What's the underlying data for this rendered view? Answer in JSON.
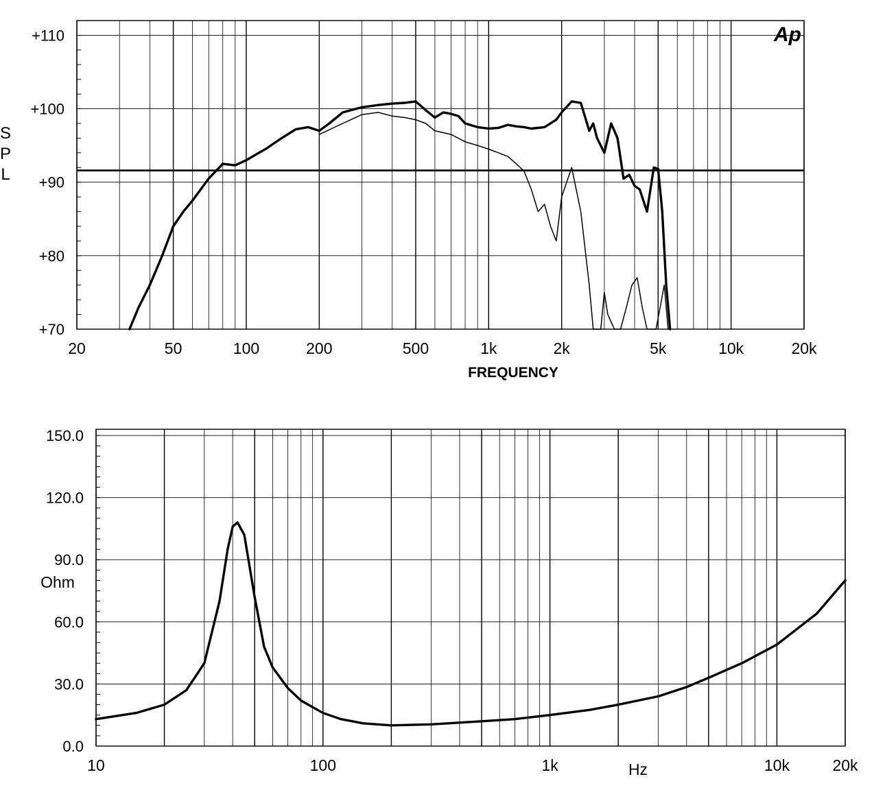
{
  "chart_data": [
    {
      "type": "line",
      "id": "spl",
      "title": "",
      "xlabel": "FREQUENCY",
      "ylabel": "SPL",
      "logo": "Ap",
      "x_scale": "log",
      "xlim": [
        20,
        20000
      ],
      "ylim": [
        70,
        112
      ],
      "grid": true,
      "x_ticks": [
        {
          "value": 20,
          "label": "20"
        },
        {
          "value": 50,
          "label": "50"
        },
        {
          "value": 100,
          "label": "100"
        },
        {
          "value": 200,
          "label": "200"
        },
        {
          "value": 500,
          "label": "500"
        },
        {
          "value": 1000,
          "label": "1k"
        },
        {
          "value": 2000,
          "label": "2k"
        },
        {
          "value": 5000,
          "label": "5k"
        },
        {
          "value": 10000,
          "label": "10k"
        },
        {
          "value": 20000,
          "label": "20k"
        }
      ],
      "y_ticks": [
        {
          "value": 70,
          "label": "+70"
        },
        {
          "value": 80,
          "label": "+80"
        },
        {
          "value": 90,
          "label": "+90"
        },
        {
          "value": 100,
          "label": "+100"
        },
        {
          "value": 110,
          "label": "+110"
        }
      ],
      "reference_line_y": 91.6,
      "series": [
        {
          "style": "thick",
          "x": [
            33,
            36,
            40,
            45,
            50,
            55,
            60,
            70,
            80,
            90,
            100,
            110,
            120,
            140,
            160,
            180,
            200,
            220,
            250,
            300,
            350,
            400,
            450,
            500,
            550,
            600,
            650,
            700,
            750,
            800,
            900,
            1000,
            1100,
            1200,
            1300,
            1400,
            1500,
            1700,
            1900,
            2000,
            2200,
            2400,
            2600,
            2700,
            2800,
            3000,
            3200,
            3400,
            3600,
            3800,
            4000,
            4200,
            4500,
            4800,
            5000,
            5200,
            5400,
            5600
          ],
          "y": [
            70,
            73,
            76,
            80,
            84,
            86,
            87.5,
            90.5,
            92.5,
            92.3,
            93,
            93.8,
            94.5,
            96,
            97.2,
            97.5,
            97,
            98,
            99.5,
            100.2,
            100.5,
            100.7,
            100.8,
            101,
            99.8,
            98.8,
            99.5,
            99.3,
            99,
            98,
            97.5,
            97.3,
            97.4,
            97.8,
            97.6,
            97.5,
            97.3,
            97.5,
            98.5,
            99.5,
            101,
            100.8,
            97,
            98,
            96,
            94,
            98,
            96,
            90.5,
            91,
            89.5,
            89,
            86,
            92,
            91.8,
            86,
            76,
            70
          ]
        },
        {
          "style": "thin",
          "x": [
            200,
            250,
            300,
            350,
            400,
            450,
            500,
            550,
            600,
            700,
            800,
            900,
            1000,
            1100,
            1200,
            1300,
            1400,
            1500,
            1600,
            1700,
            1800,
            1900,
            2000,
            2200,
            2400,
            2600,
            2700,
            2800,
            2900,
            3000,
            3100,
            3300,
            3500,
            3700,
            3900,
            4100,
            4300,
            4500,
            4700,
            4900,
            5100,
            5300,
            5500
          ],
          "y": [
            96.5,
            98,
            99.2,
            99.5,
            99,
            98.8,
            98.5,
            98,
            97,
            96.5,
            95.5,
            95,
            94.5,
            94,
            93.5,
            92.5,
            91.5,
            89,
            86,
            87,
            84,
            82,
            88,
            92,
            86,
            76,
            70,
            70,
            70,
            75,
            72,
            70,
            70,
            73,
            76,
            77,
            73,
            70,
            70,
            70,
            73,
            76,
            70
          ]
        }
      ]
    },
    {
      "type": "line",
      "id": "impedance",
      "title": "",
      "xlabel": "Hz",
      "ylabel": "Ohm",
      "x_scale": "log",
      "xlim": [
        10,
        20000
      ],
      "ylim": [
        0,
        153
      ],
      "grid": true,
      "x_ticks": [
        {
          "value": 10,
          "label": "10"
        },
        {
          "value": 100,
          "label": "100"
        },
        {
          "value": 1000,
          "label": "1k"
        },
        {
          "value": 10000,
          "label": "10k"
        },
        {
          "value": 20000,
          "label": "20k"
        }
      ],
      "y_ticks": [
        {
          "value": 0,
          "label": "0.0"
        },
        {
          "value": 30,
          "label": "30.0"
        },
        {
          "value": 60,
          "label": "60.0"
        },
        {
          "value": 90,
          "label": "90.0"
        },
        {
          "value": 120,
          "label": "120.0"
        },
        {
          "value": 150,
          "label": "150.0"
        }
      ],
      "series": [
        {
          "style": "thick",
          "x": [
            10,
            15,
            20,
            25,
            30,
            35,
            38,
            40,
            42,
            45,
            50,
            55,
            60,
            70,
            80,
            100,
            120,
            150,
            200,
            300,
            500,
            700,
            1000,
            1500,
            2000,
            3000,
            4000,
            5000,
            7000,
            10000,
            15000,
            20000
          ],
          "y": [
            13,
            16,
            20,
            27,
            40,
            70,
            95,
            106,
            108,
            102,
            72,
            48,
            38,
            28,
            22,
            16,
            13,
            11,
            10,
            10.5,
            12,
            13,
            15,
            17.5,
            20,
            24,
            28.5,
            33,
            40,
            49,
            64,
            80
          ]
        }
      ]
    }
  ]
}
